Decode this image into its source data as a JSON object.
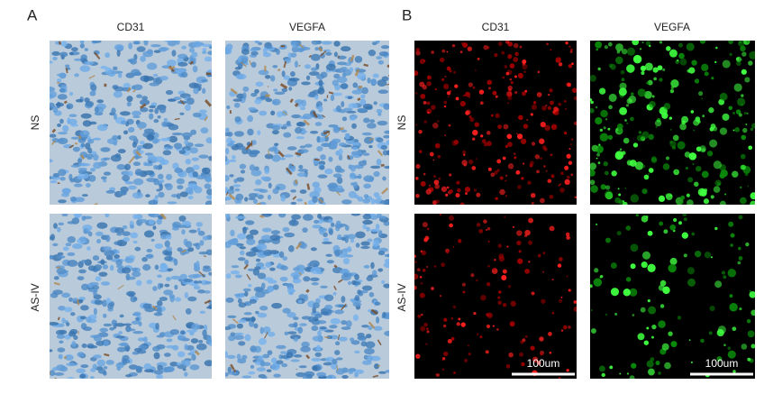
{
  "panel_a": {
    "label": "A",
    "columns": [
      "CD31",
      "VEGFA"
    ],
    "rows": [
      "NS",
      "AS-IV"
    ]
  },
  "panel_b": {
    "label": "B",
    "columns": [
      "CD31",
      "VEGFA"
    ],
    "rows": [
      "NS",
      "AS-IV"
    ],
    "scale_bar": "100um"
  }
}
